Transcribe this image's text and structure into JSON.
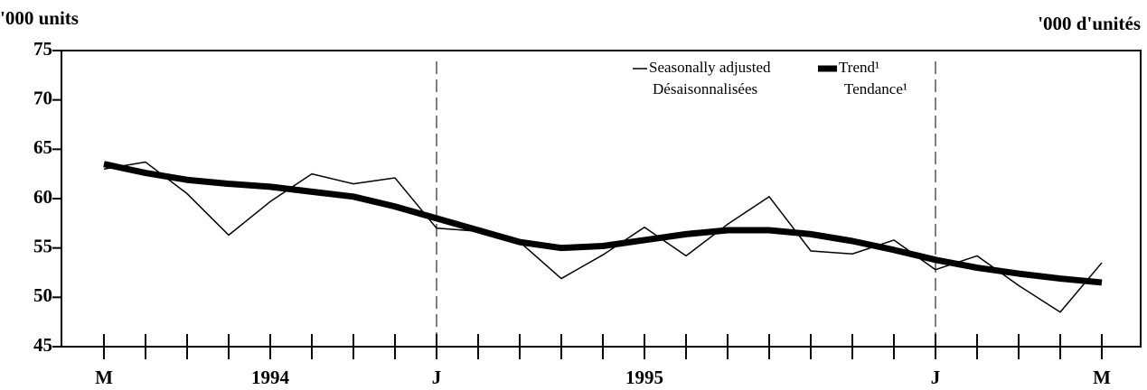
{
  "chart_data": {
    "type": "line",
    "y_label_left": "'000 units",
    "y_label_right": "'000 d'unités",
    "categories": [
      "M",
      null,
      null,
      null,
      "1994",
      null,
      null,
      null,
      "J",
      null,
      null,
      null,
      null,
      "1995",
      null,
      null,
      null,
      null,
      null,
      null,
      "J",
      null,
      null,
      null,
      "M"
    ],
    "series": [
      {
        "name": "Seasonally adjusted",
        "name_fr": "Désaisonnalisées",
        "color": "#000000",
        "width": 1.5,
        "values": [
          63.0,
          63.7,
          60.5,
          56.3,
          59.7,
          62.5,
          61.5,
          62.1,
          57.0,
          56.7,
          55.6,
          51.9,
          54.3,
          57.1,
          54.2,
          57.4,
          60.2,
          54.7,
          54.4,
          55.8,
          52.8,
          54.2,
          51.2,
          48.5,
          53.5
        ]
      },
      {
        "name": "Trend¹",
        "name_fr": "Tendance¹",
        "color": "#000000",
        "width": 7,
        "values": [
          63.5,
          62.6,
          61.9,
          61.5,
          61.2,
          60.7,
          60.2,
          59.2,
          58.0,
          56.8,
          55.6,
          55.0,
          55.2,
          55.8,
          56.4,
          56.8,
          56.8,
          56.4,
          55.7,
          54.8,
          53.8,
          53.0,
          52.4,
          51.9,
          51.5
        ]
      }
    ],
    "ylim": [
      45,
      75
    ],
    "yticks": [
      45,
      50,
      55,
      60,
      65,
      70,
      75
    ]
  }
}
